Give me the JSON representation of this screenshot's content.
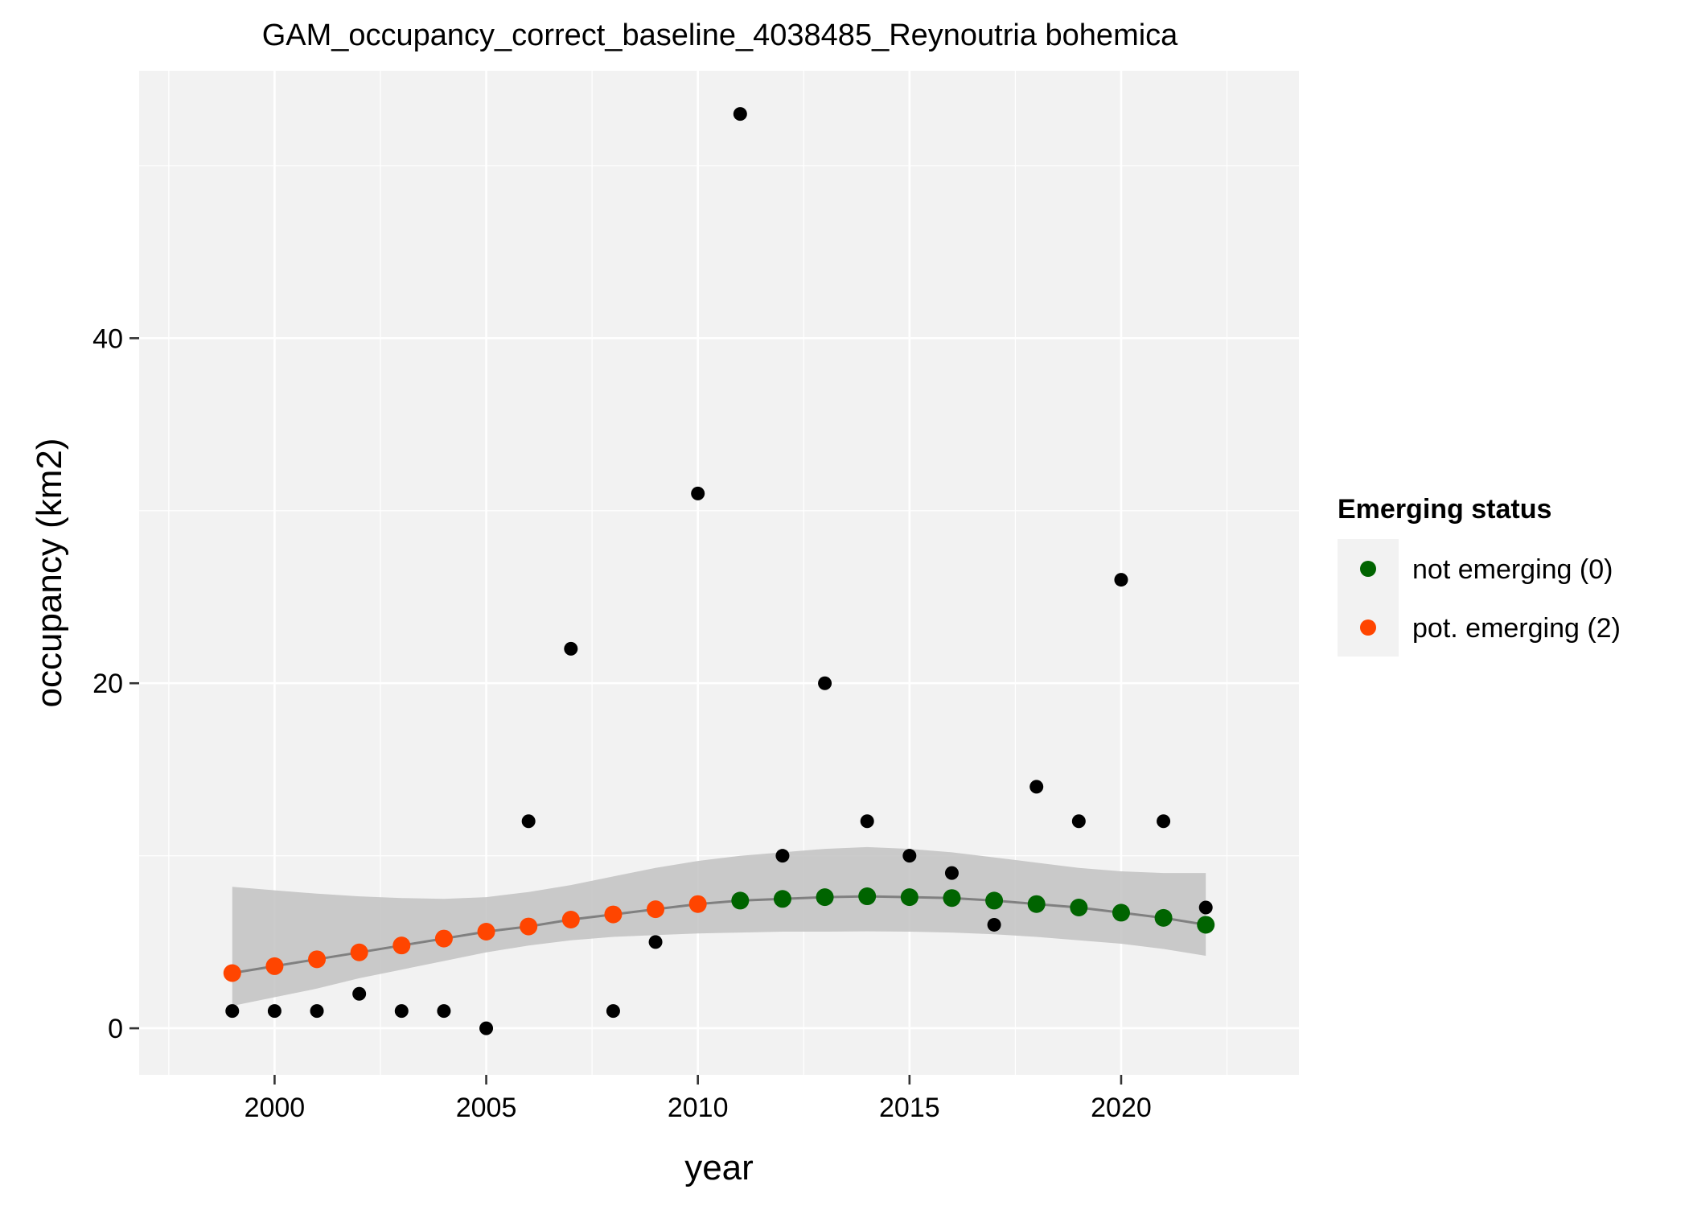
{
  "chart_data": {
    "type": "scatter",
    "title": "GAM_occupancy_correct_baseline_4038485_Reynoutria bohemica",
    "xlabel": "year",
    "ylabel": "occupancy (km2)",
    "xlim": [
      1996.8,
      2024.2
    ],
    "ylim": [
      -2.7,
      55.5
    ],
    "x_ticks": [
      2000,
      2005,
      2010,
      2015,
      2020
    ],
    "y_ticks": [
      0,
      20,
      40
    ],
    "grid": true,
    "legend": {
      "title": "Emerging status",
      "placement": "right",
      "entries": [
        {
          "label": "not emerging (0)",
          "color": "#006400"
        },
        {
          "label": "pot. emerging (2)",
          "color": "#FF4500"
        }
      ]
    },
    "observed": {
      "color": "#000000",
      "x": [
        1999,
        2000,
        2001,
        2002,
        2003,
        2004,
        2005,
        2006,
        2007,
        2008,
        2009,
        2010,
        2011,
        2012,
        2013,
        2014,
        2015,
        2016,
        2017,
        2018,
        2019,
        2020,
        2021,
        2022
      ],
      "y": [
        1,
        1,
        1,
        2,
        1,
        1,
        0,
        12,
        22,
        1,
        5,
        31,
        53,
        10,
        20,
        12,
        10,
        9,
        6,
        14,
        12,
        26,
        12,
        7
      ]
    },
    "fitted": {
      "line_color": "#808080",
      "ribbon_color": "#BEBEBE",
      "x": [
        1999,
        2000,
        2001,
        2002,
        2003,
        2004,
        2005,
        2006,
        2007,
        2008,
        2009,
        2010,
        2011,
        2012,
        2013,
        2014,
        2015,
        2016,
        2017,
        2018,
        2019,
        2020,
        2021,
        2022
      ],
      "y": [
        3.2,
        3.6,
        4.0,
        4.4,
        4.8,
        5.2,
        5.6,
        5.9,
        6.3,
        6.6,
        6.9,
        7.2,
        7.4,
        7.5,
        7.6,
        7.65,
        7.6,
        7.55,
        7.4,
        7.2,
        7.0,
        6.7,
        6.4,
        6.0
      ],
      "lower": [
        1.3,
        1.8,
        2.3,
        2.9,
        3.4,
        3.9,
        4.4,
        4.8,
        5.1,
        5.3,
        5.4,
        5.5,
        5.55,
        5.6,
        5.6,
        5.62,
        5.6,
        5.55,
        5.45,
        5.3,
        5.1,
        4.9,
        4.6,
        4.2
      ],
      "upper": [
        8.2,
        8.0,
        7.8,
        7.65,
        7.55,
        7.5,
        7.6,
        7.9,
        8.3,
        8.8,
        9.3,
        9.7,
        10.0,
        10.2,
        10.4,
        10.5,
        10.4,
        10.2,
        9.9,
        9.6,
        9.3,
        9.1,
        9.0,
        9.0
      ],
      "status": [
        2,
        2,
        2,
        2,
        2,
        2,
        2,
        2,
        2,
        2,
        2,
        2,
        0,
        0,
        0,
        0,
        0,
        0,
        0,
        0,
        0,
        0,
        0,
        0
      ]
    },
    "colors": {
      "panel_background": "#F2F2F2",
      "grid": "#FFFFFF",
      "not_emerging": "#006400",
      "pot_emerging": "#FF4500",
      "observed": "#000000"
    }
  }
}
